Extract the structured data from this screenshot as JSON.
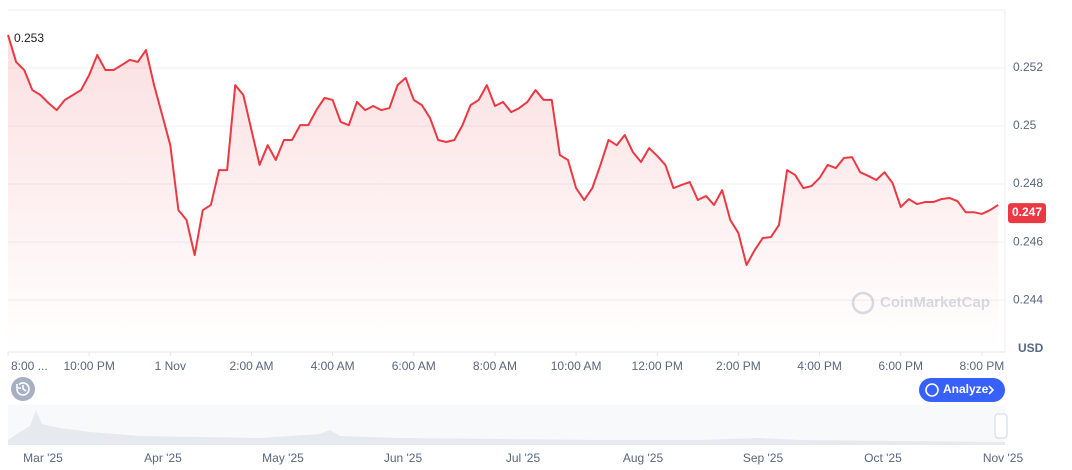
{
  "chart_data": {
    "type": "line",
    "color": "#ea3943",
    "grid": true,
    "y_unit": "USD",
    "max_label": 0.253,
    "last_label": 0.247,
    "x": [
      0,
      0.2,
      0.4,
      0.6,
      0.8,
      1,
      1.2,
      1.4,
      1.6,
      1.8,
      2,
      2.2,
      2.4,
      2.6,
      2.8,
      3,
      3.2,
      3.4,
      3.6,
      3.8,
      4,
      4.2,
      4.4,
      4.6,
      4.8,
      5,
      5.2,
      5.4,
      5.6,
      5.8,
      6,
      6.2,
      6.4,
      6.6,
      6.8,
      7,
      7.2,
      7.4,
      7.6,
      7.8,
      8,
      8.2,
      8.4,
      8.6,
      8.8,
      9,
      9.2,
      9.4,
      9.6,
      9.8,
      10,
      10.2,
      10.4,
      10.6,
      10.8,
      11,
      11.2,
      11.4,
      11.6,
      11.8,
      12,
      12.2,
      12.4,
      12.6,
      12.8,
      13,
      13.2,
      13.4,
      13.6,
      13.8,
      14,
      14.2,
      14.4,
      14.6,
      14.8,
      15,
      15.2,
      15.4,
      15.6,
      15.8,
      16,
      16.2,
      16.4,
      16.6,
      16.8,
      17,
      17.2,
      17.4,
      17.6,
      17.8,
      18,
      18.2,
      18.4,
      18.6,
      18.8,
      19,
      19.2,
      19.4,
      19.6,
      19.8,
      20,
      20.2,
      20.4,
      20.6,
      20.8,
      21,
      21.2,
      21.4,
      21.6,
      21.8,
      22,
      22.2,
      22.4,
      22.6,
      22.8,
      23,
      23.2,
      23.4,
      23.6,
      23.8,
      24,
      24.2,
      24.4
    ],
    "values": [
      0.25314,
      0.25221,
      0.25193,
      0.25124,
      0.25107,
      0.25079,
      0.25055,
      0.2509,
      0.25107,
      0.25124,
      0.25176,
      0.25245,
      0.25193,
      0.25193,
      0.2521,
      0.25228,
      0.25221,
      0.25262,
      0.25141,
      0.25038,
      0.24934,
      0.2471,
      0.24676,
      0.24555,
      0.2471,
      0.24728,
      0.24848,
      0.24848,
      0.25141,
      0.25107,
      0.24986,
      0.24866,
      0.24934,
      0.24883,
      0.24952,
      0.24952,
      0.25003,
      0.25003,
      0.25055,
      0.25097,
      0.2509,
      0.25014,
      0.25003,
      0.25083,
      0.25055,
      0.25069,
      0.25055,
      0.25062,
      0.25141,
      0.25166,
      0.2509,
      0.25072,
      0.25028,
      0.24952,
      0.24945,
      0.24952,
      0.25003,
      0.25072,
      0.2509,
      0.25141,
      0.25069,
      0.25083,
      0.25048,
      0.25062,
      0.25083,
      0.25124,
      0.2509,
      0.2509,
      0.249,
      0.24883,
      0.24786,
      0.24745,
      0.24786,
      0.24866,
      0.24952,
      0.24934,
      0.24969,
      0.2491,
      0.24876,
      0.24924,
      0.24897,
      0.24866,
      0.24786,
      0.24797,
      0.24807,
      0.24745,
      0.24759,
      0.24728,
      0.24779,
      0.24676,
      0.24631,
      0.24521,
      0.24572,
      0.24614,
      0.24617,
      0.24659,
      0.24848,
      0.24831,
      0.24786,
      0.24793,
      0.24821,
      0.24866,
      0.24855,
      0.2489,
      0.24893,
      0.24841,
      0.24828,
      0.24814,
      0.24841,
      0.24803,
      0.24721,
      0.24748,
      0.24731,
      0.24738,
      0.24738,
      0.24748,
      0.24752,
      0.24741,
      0.24703,
      0.24703,
      0.24697,
      0.2471,
      0.24728
    ],
    "xlim": [
      0,
      24.57
    ],
    "ylim": [
      0.24228,
      0.254
    ],
    "yticks": [
      0.244,
      0.246,
      0.248,
      0.25,
      0.252
    ],
    "xticks": [
      {
        "value": 0,
        "label": "8:00 ..."
      },
      {
        "value": 2,
        "label": "10:00 PM"
      },
      {
        "value": 4,
        "label": "1 Nov"
      },
      {
        "value": 6,
        "label": "2:00 AM"
      },
      {
        "value": 8,
        "label": "4:00 AM"
      },
      {
        "value": 10,
        "label": "6:00 AM"
      },
      {
        "value": 12,
        "label": "8:00 AM"
      },
      {
        "value": 14,
        "label": "10:00 AM"
      },
      {
        "value": 16,
        "label": "12:00 PM"
      },
      {
        "value": 18,
        "label": "2:00 PM"
      },
      {
        "value": 20,
        "label": "4:00 PM"
      },
      {
        "value": 22,
        "label": "6:00 PM"
      },
      {
        "value": 24,
        "label": "8:00 PM"
      }
    ]
  },
  "navigator": {
    "labels": [
      "Mar '25",
      "Apr '25",
      "May '25",
      "Jun '25",
      "Jul '25",
      "Aug '25",
      "Sep '25",
      "Oct '25",
      "Nov '25"
    ]
  },
  "analyze_button": "Analyze",
  "watermark": "CoinMarketCap"
}
